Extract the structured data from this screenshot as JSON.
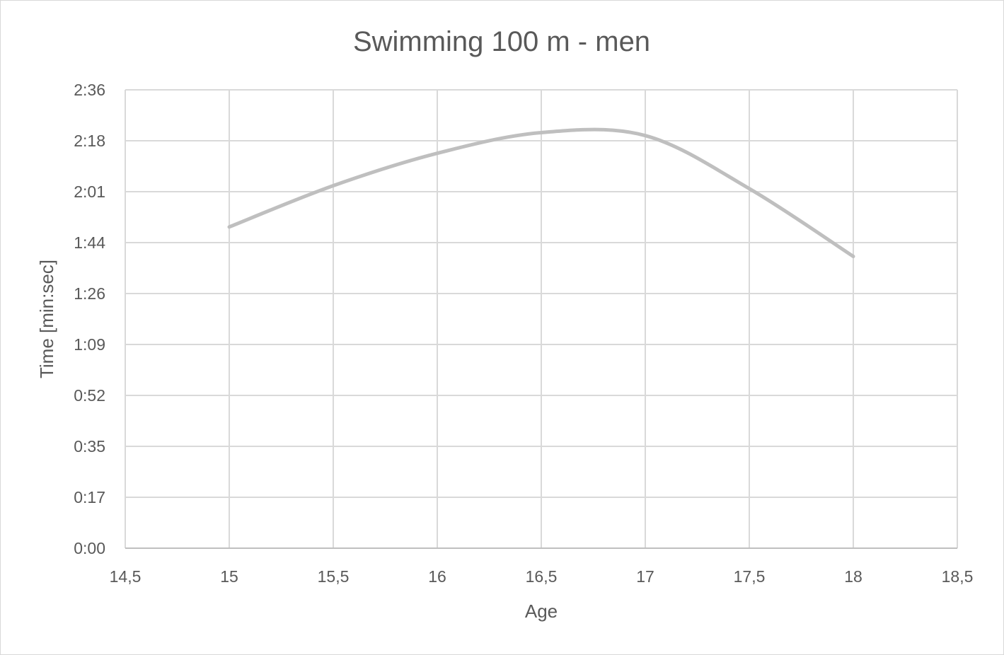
{
  "chart_data": {
    "type": "line",
    "title": "Swimming 100 m - men",
    "xlabel": "Age",
    "ylabel": "Time [min:sec]",
    "x_ticks": [
      "14,5",
      "15",
      "15,5",
      "16",
      "16,5",
      "17",
      "17,5",
      "18",
      "18,5"
    ],
    "x_tick_values": [
      14.5,
      15,
      15.5,
      16,
      16.5,
      17,
      17.5,
      18,
      18.5
    ],
    "y_ticks": [
      "0:00",
      "0:17",
      "0:35",
      "0:52",
      "1:09",
      "1:26",
      "1:44",
      "2:01",
      "2:18",
      "2:36"
    ],
    "y_tick_values_seconds": [
      0,
      17.28,
      34.56,
      51.84,
      69.12,
      86.4,
      103.68,
      120.96,
      138.24,
      155.52
    ],
    "xlim": [
      14.5,
      18.5
    ],
    "ylim_seconds": [
      0,
      155.52
    ],
    "grid": true,
    "smooth": true,
    "series": [
      {
        "x": [
          15,
          15.5,
          16,
          16.5,
          17,
          17.5,
          18
        ],
        "y_seconds": [
          109,
          123,
          134,
          141,
          140,
          122,
          99
        ],
        "color": "#bfbfbf"
      }
    ]
  }
}
